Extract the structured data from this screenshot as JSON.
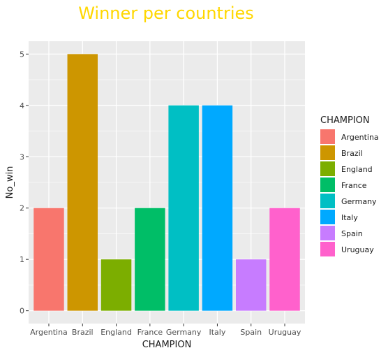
{
  "chart_data": {
    "type": "bar",
    "title": "Winner per countries",
    "xlabel": "CHAMPION",
    "ylabel": "No_win",
    "categories": [
      "Argentina",
      "Brazil",
      "England",
      "France",
      "Germany",
      "Italy",
      "Spain",
      "Uruguay"
    ],
    "values": [
      2,
      5,
      1,
      2,
      4,
      4,
      1,
      2
    ],
    "colors": [
      "#F8766D",
      "#CD9600",
      "#7CAE00",
      "#00BE67",
      "#00BFC4",
      "#00A9FF",
      "#C77CFF",
      "#FF61CC"
    ],
    "yticks": [
      0,
      1,
      2,
      3,
      4,
      5
    ],
    "ylim": [
      -0.25,
      5.25
    ],
    "grid": true,
    "legend_title": "CHAMPION",
    "legend_position": "right",
    "title_color": "#FFD700",
    "panel_background": "#EBEBEB"
  }
}
